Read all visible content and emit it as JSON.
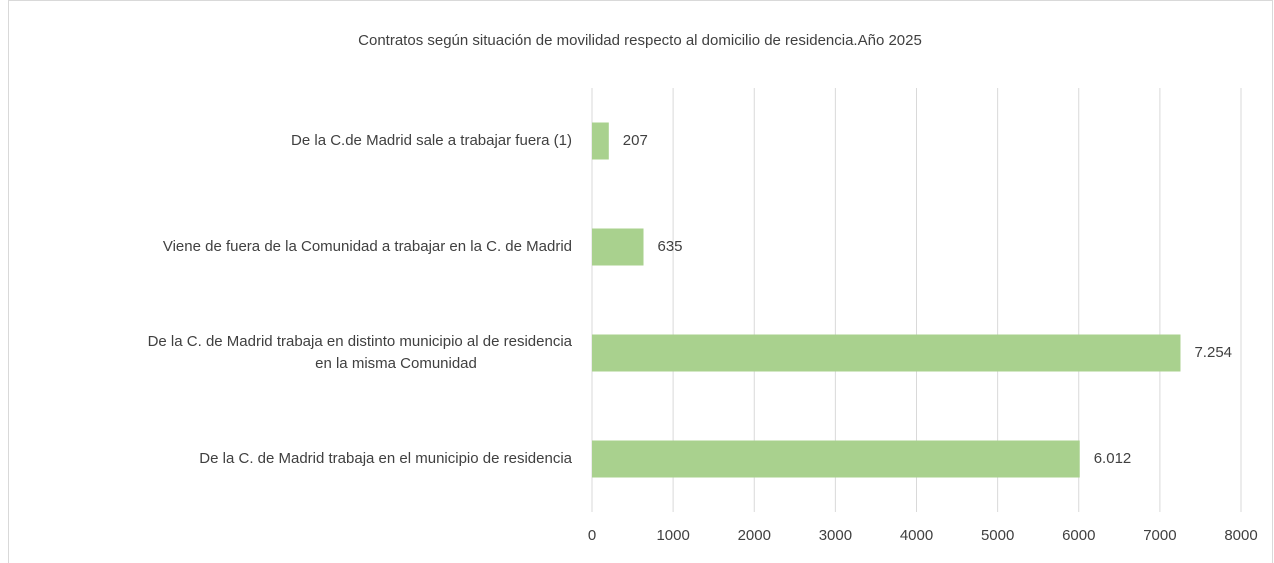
{
  "chart_data": {
    "type": "bar",
    "orientation": "horizontal",
    "title": "Contratos según situación de movilidad respecto al domicilio de residencia.Año 2025",
    "categories": [
      "De la C.de Madrid sale a trabajar fuera (1)",
      "Viene de fuera de la Comunidad a trabajar en la C. de Madrid",
      "De la C. de Madrid trabaja en distinto municipio al de residencia\nen la misma Comunidad",
      "De la C. de Madrid trabaja en el municipio de residencia"
    ],
    "values": [
      207,
      635,
      7254,
      6012
    ],
    "value_labels": [
      "207",
      "635",
      "7.254",
      "6.012"
    ],
    "color": "#a9d18e",
    "xlim": [
      0,
      8000
    ],
    "xticks": [
      0,
      1000,
      2000,
      3000,
      4000,
      5000,
      6000,
      7000,
      8000
    ],
    "grid": true
  }
}
